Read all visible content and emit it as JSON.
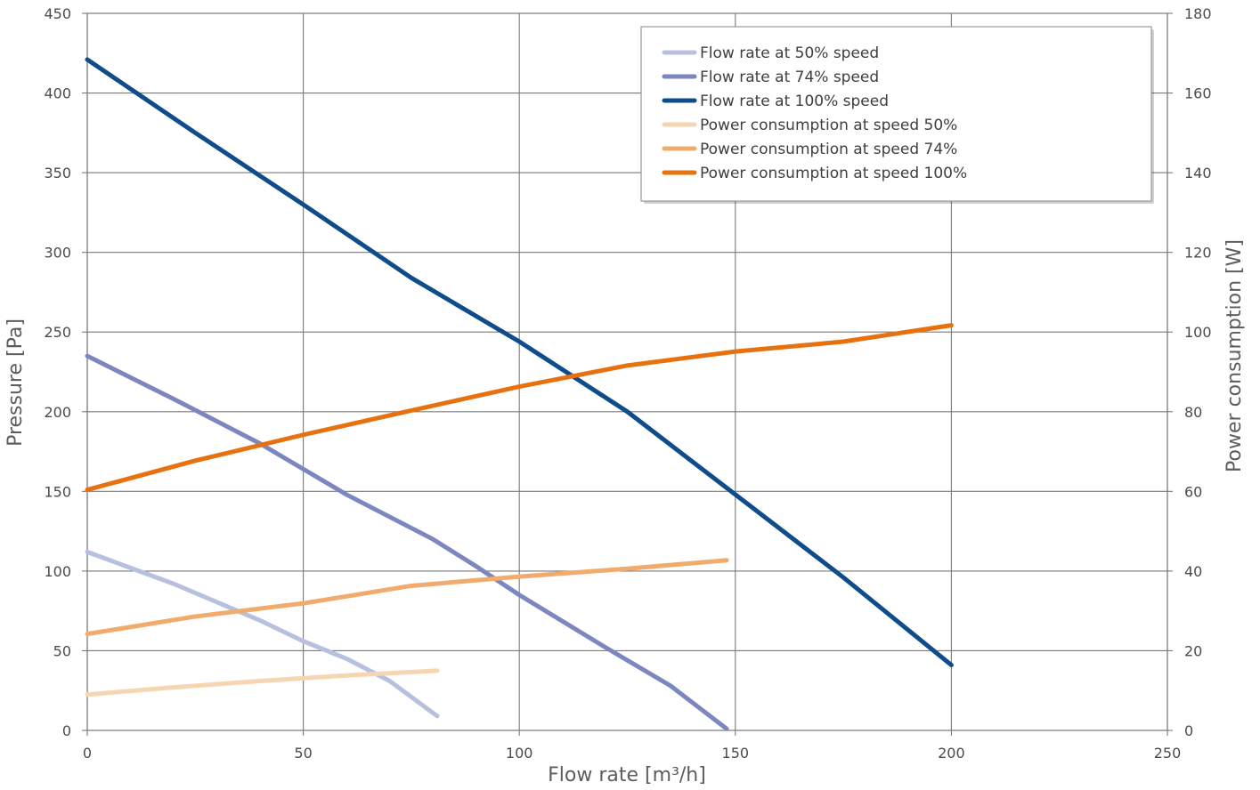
{
  "chart_data": {
    "type": "line",
    "title": "",
    "xlabel": "Flow rate [m³/h]",
    "ylabel_left": "Pressure [Pa]",
    "ylabel_right": "Power consumption [W]",
    "xlim": [
      0,
      250
    ],
    "ylim_left": [
      0,
      450
    ],
    "ylim_right": [
      0,
      180
    ],
    "x_ticks": [
      0,
      50,
      100,
      150,
      200,
      250
    ],
    "y_left_ticks": [
      0,
      50,
      100,
      150,
      200,
      250,
      300,
      350,
      400,
      450
    ],
    "y_right_ticks": [
      0,
      20,
      40,
      60,
      80,
      100,
      120,
      140,
      160,
      180
    ],
    "grid": true,
    "legend_position": "top-right",
    "series": [
      {
        "name": "Flow rate at 50% speed",
        "axis": "left",
        "color": "#b8c0df",
        "points": [
          [
            0,
            112
          ],
          [
            20,
            92
          ],
          [
            40,
            69
          ],
          [
            50,
            56
          ],
          [
            60,
            45
          ],
          [
            70,
            31
          ],
          [
            81,
            9
          ]
        ]
      },
      {
        "name": "Flow rate at 74% speed",
        "axis": "left",
        "color": "#7c87bf",
        "points": [
          [
            0,
            235
          ],
          [
            20,
            208
          ],
          [
            40,
            180
          ],
          [
            60,
            148
          ],
          [
            80,
            120
          ],
          [
            90,
            103
          ],
          [
            100,
            85
          ],
          [
            120,
            52
          ],
          [
            135,
            28
          ],
          [
            148,
            1
          ]
        ]
      },
      {
        "name": "Flow rate at 100% speed",
        "axis": "left",
        "color": "#0f4c8c",
        "points": [
          [
            0,
            421
          ],
          [
            25,
            375
          ],
          [
            50,
            330
          ],
          [
            75,
            284
          ],
          [
            100,
            244
          ],
          [
            125,
            200
          ],
          [
            150,
            148
          ],
          [
            175,
            96
          ],
          [
            200,
            41
          ]
        ]
      },
      {
        "name": "Power consumption at speed 50%",
        "axis": "right",
        "color": "#f6d6b2",
        "points": [
          [
            0,
            9
          ],
          [
            20,
            10.8
          ],
          [
            40,
            12.4
          ],
          [
            60,
            13.8
          ],
          [
            81,
            15.0
          ]
        ]
      },
      {
        "name": "Power consumption at speed 74%",
        "axis": "right",
        "color": "#f1ab6c",
        "points": [
          [
            0,
            24.2
          ],
          [
            25,
            28.6
          ],
          [
            50,
            31.9
          ],
          [
            75,
            36.3
          ],
          [
            100,
            38.6
          ],
          [
            125,
            40.6
          ],
          [
            148,
            42.7
          ]
        ]
      },
      {
        "name": "Power consumption at speed 100%",
        "axis": "right",
        "color": "#e8710f",
        "points": [
          [
            0,
            60.4
          ],
          [
            25,
            67.7
          ],
          [
            50,
            74.2
          ],
          [
            75,
            80.3
          ],
          [
            100,
            86.3
          ],
          [
            125,
            91.6
          ],
          [
            150,
            95.1
          ],
          [
            175,
            97.6
          ],
          [
            200,
            101.7
          ]
        ]
      }
    ]
  }
}
